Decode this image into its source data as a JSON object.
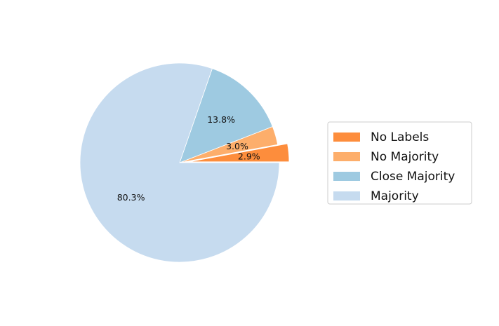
{
  "chart_data": {
    "type": "pie",
    "title": "",
    "slices": [
      {
        "label": "No Labels",
        "value": 2.9,
        "value_label": "2.9%",
        "color": "#fd8d3c",
        "exploded": true
      },
      {
        "label": "No Majority",
        "value": 3.0,
        "value_label": "3.0%",
        "color": "#fdae6b",
        "exploded": false
      },
      {
        "label": "Close Majority",
        "value": 13.8,
        "value_label": "13.8%",
        "color": "#9ecae1",
        "exploded": false
      },
      {
        "label": "Majority",
        "value": 80.3,
        "value_label": "80.3%",
        "color": "#c6dbef",
        "exploded": false
      }
    ],
    "start_angle_deg": 0,
    "direction": "counterclockwise",
    "legend": {
      "placement": "center-right",
      "entries": [
        "No Labels",
        "No Majority",
        "Close Majority",
        "Majority"
      ]
    }
  }
}
